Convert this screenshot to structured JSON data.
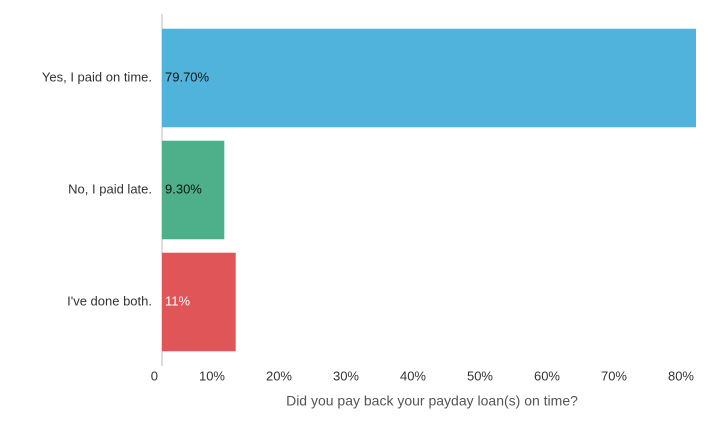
{
  "chart_data": {
    "type": "hbar",
    "categories": [
      "Yes, I paid on time.",
      "No, I paid late.",
      "I've done both."
    ],
    "values": [
      79.7,
      9.3,
      11
    ],
    "value_labels": [
      "79.70%",
      "9.30%",
      "11%"
    ],
    "colors": [
      "#4fb3dc",
      "#4db08a",
      "#e05558"
    ],
    "x_label": "Did you pay back your payday loan(s) on time?",
    "xlim": [
      0,
      80
    ],
    "xticks": [
      0,
      {
        "value": 10,
        "label": "10%"
      },
      {
        "value": 20,
        "label": "20%"
      },
      {
        "value": 30,
        "label": "30%"
      },
      {
        "value": 40,
        "label": "40%"
      },
      {
        "value": 50,
        "label": "50%"
      },
      {
        "value": 60,
        "label": "60%"
      },
      {
        "value": 70,
        "label": "70%"
      },
      {
        "value": 80,
        "label": "80%"
      }
    ],
    "grid": false
  }
}
